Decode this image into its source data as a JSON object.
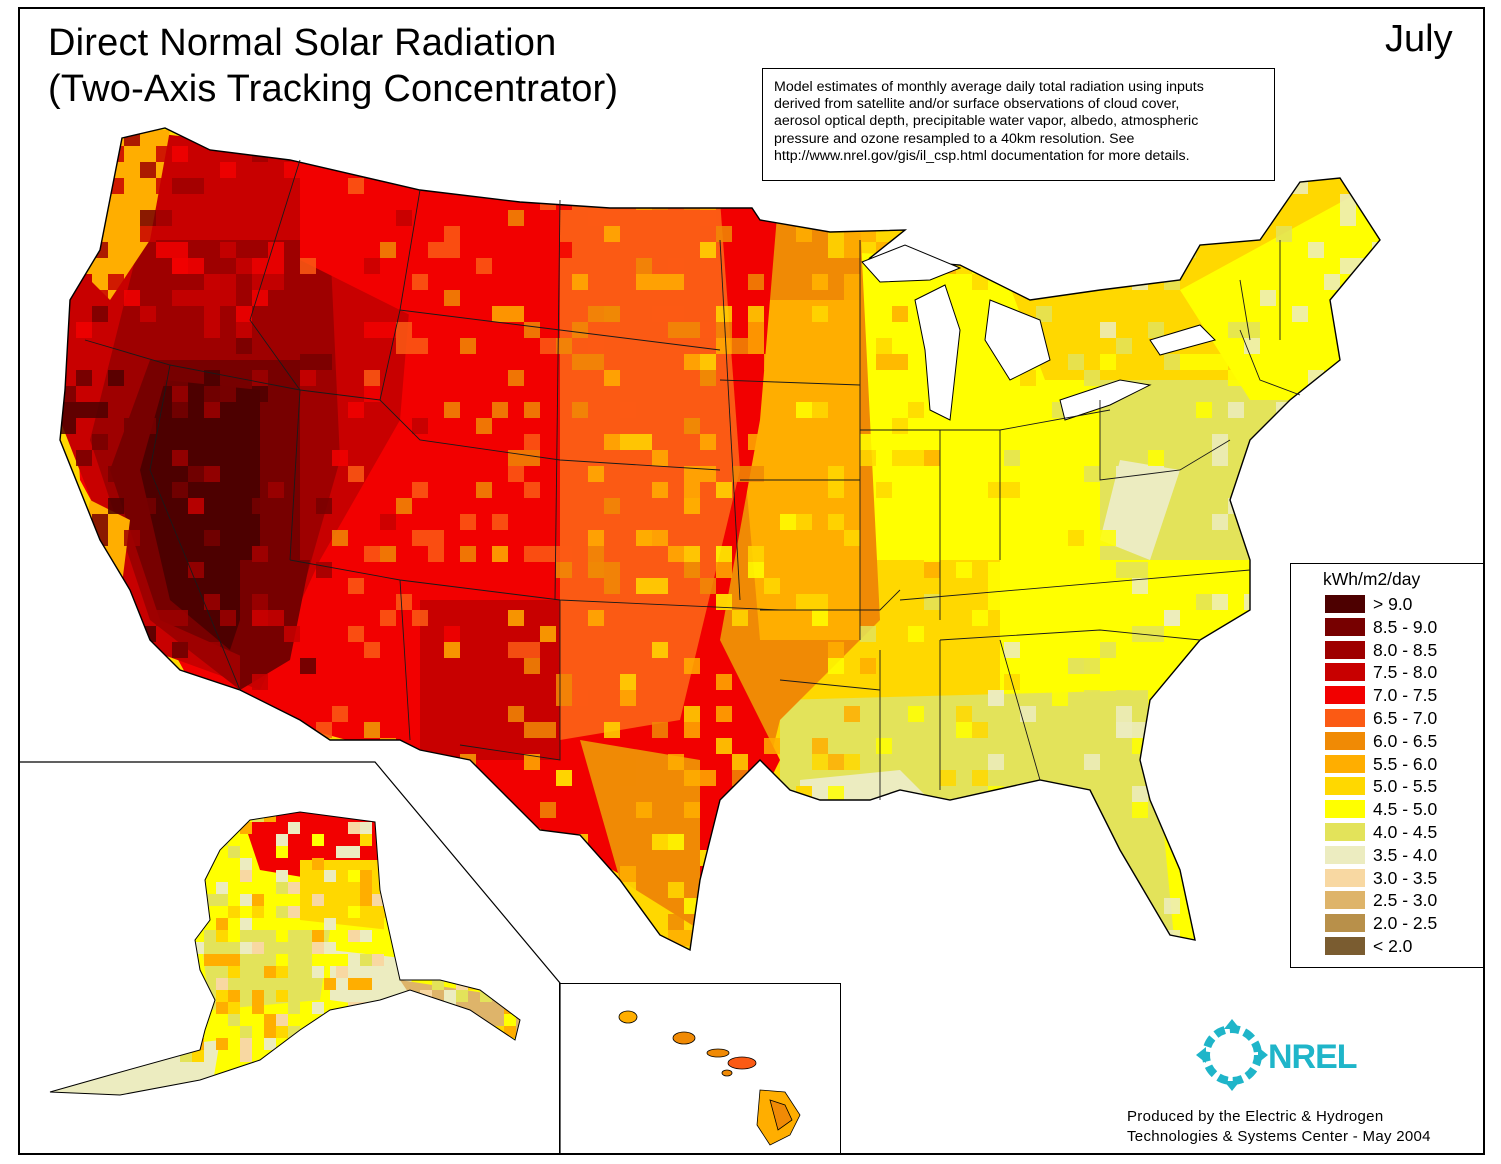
{
  "map": {
    "title_line1": "Direct Normal Solar Radiation",
    "title_line2": "(Two-Axis Tracking Concentrator)",
    "month": "July",
    "note_lines": [
      "Model estimates of monthly average daily total radiation using inputs",
      "derived from satellite and/or surface observations of cloud cover,",
      "aerosol optical depth, precipitable water vapor, albedo, atmospheric",
      "pressure and ozone resampled to a 40km resolution.  See",
      "http://www.nrel.gov/gis/il_csp.html documentation for more details."
    ],
    "credit_line1": "Produced by the Electric & Hydrogen",
    "credit_line2": "Technologies & Systems Center - May 2004",
    "logo_text": "NREL"
  },
  "legend": {
    "title": "kWh/m2/day",
    "items": [
      {
        "label": "> 9.0",
        "color": "#4d0000"
      },
      {
        "label": "8.5 - 9.0",
        "color": "#770000"
      },
      {
        "label": "8.0 - 8.5",
        "color": "#9e0000"
      },
      {
        "label": "7.5 - 8.0",
        "color": "#c80000"
      },
      {
        "label": "7.0 - 7.5",
        "color": "#f20000"
      },
      {
        "label": "6.5 - 7.0",
        "color": "#fb5a14"
      },
      {
        "label": "6.0 - 6.5",
        "color": "#f08a05"
      },
      {
        "label": "5.5 - 6.0",
        "color": "#ffae00"
      },
      {
        "label": "5.0 - 5.5",
        "color": "#ffd800"
      },
      {
        "label": "4.5 - 5.0",
        "color": "#ffff00"
      },
      {
        "label": "4.0 - 4.5",
        "color": "#e3e35a"
      },
      {
        "label": "3.5 - 4.0",
        "color": "#ececc0"
      },
      {
        "label": "3.0 - 3.5",
        "color": "#f8d8a2"
      },
      {
        "label": "2.5 - 3.0",
        "color": "#deb46a"
      },
      {
        "label": "2.0 - 2.5",
        "color": "#b8904a"
      },
      {
        "label": "< 2.0",
        "color": "#7a5c30"
      }
    ]
  },
  "regions": [
    {
      "id": "west-coast",
      "class": "7.0 - 7.5"
    },
    {
      "id": "great-basin",
      "class": "> 9.0"
    },
    {
      "id": "rockies-north",
      "class": "7.0 - 7.5"
    },
    {
      "id": "southwest",
      "class": "7.5 - 8.0"
    },
    {
      "id": "plains",
      "class": "6.0 - 6.5"
    },
    {
      "id": "midwest",
      "class": "5.0 - 5.5"
    },
    {
      "id": "southeast",
      "class": "4.0 - 4.5"
    },
    {
      "id": "northeast",
      "class": "4.5 - 5.0"
    },
    {
      "id": "alaska",
      "class": "4.5 - 5.0"
    },
    {
      "id": "hawaii",
      "class": "6.0 - 6.5"
    }
  ]
}
